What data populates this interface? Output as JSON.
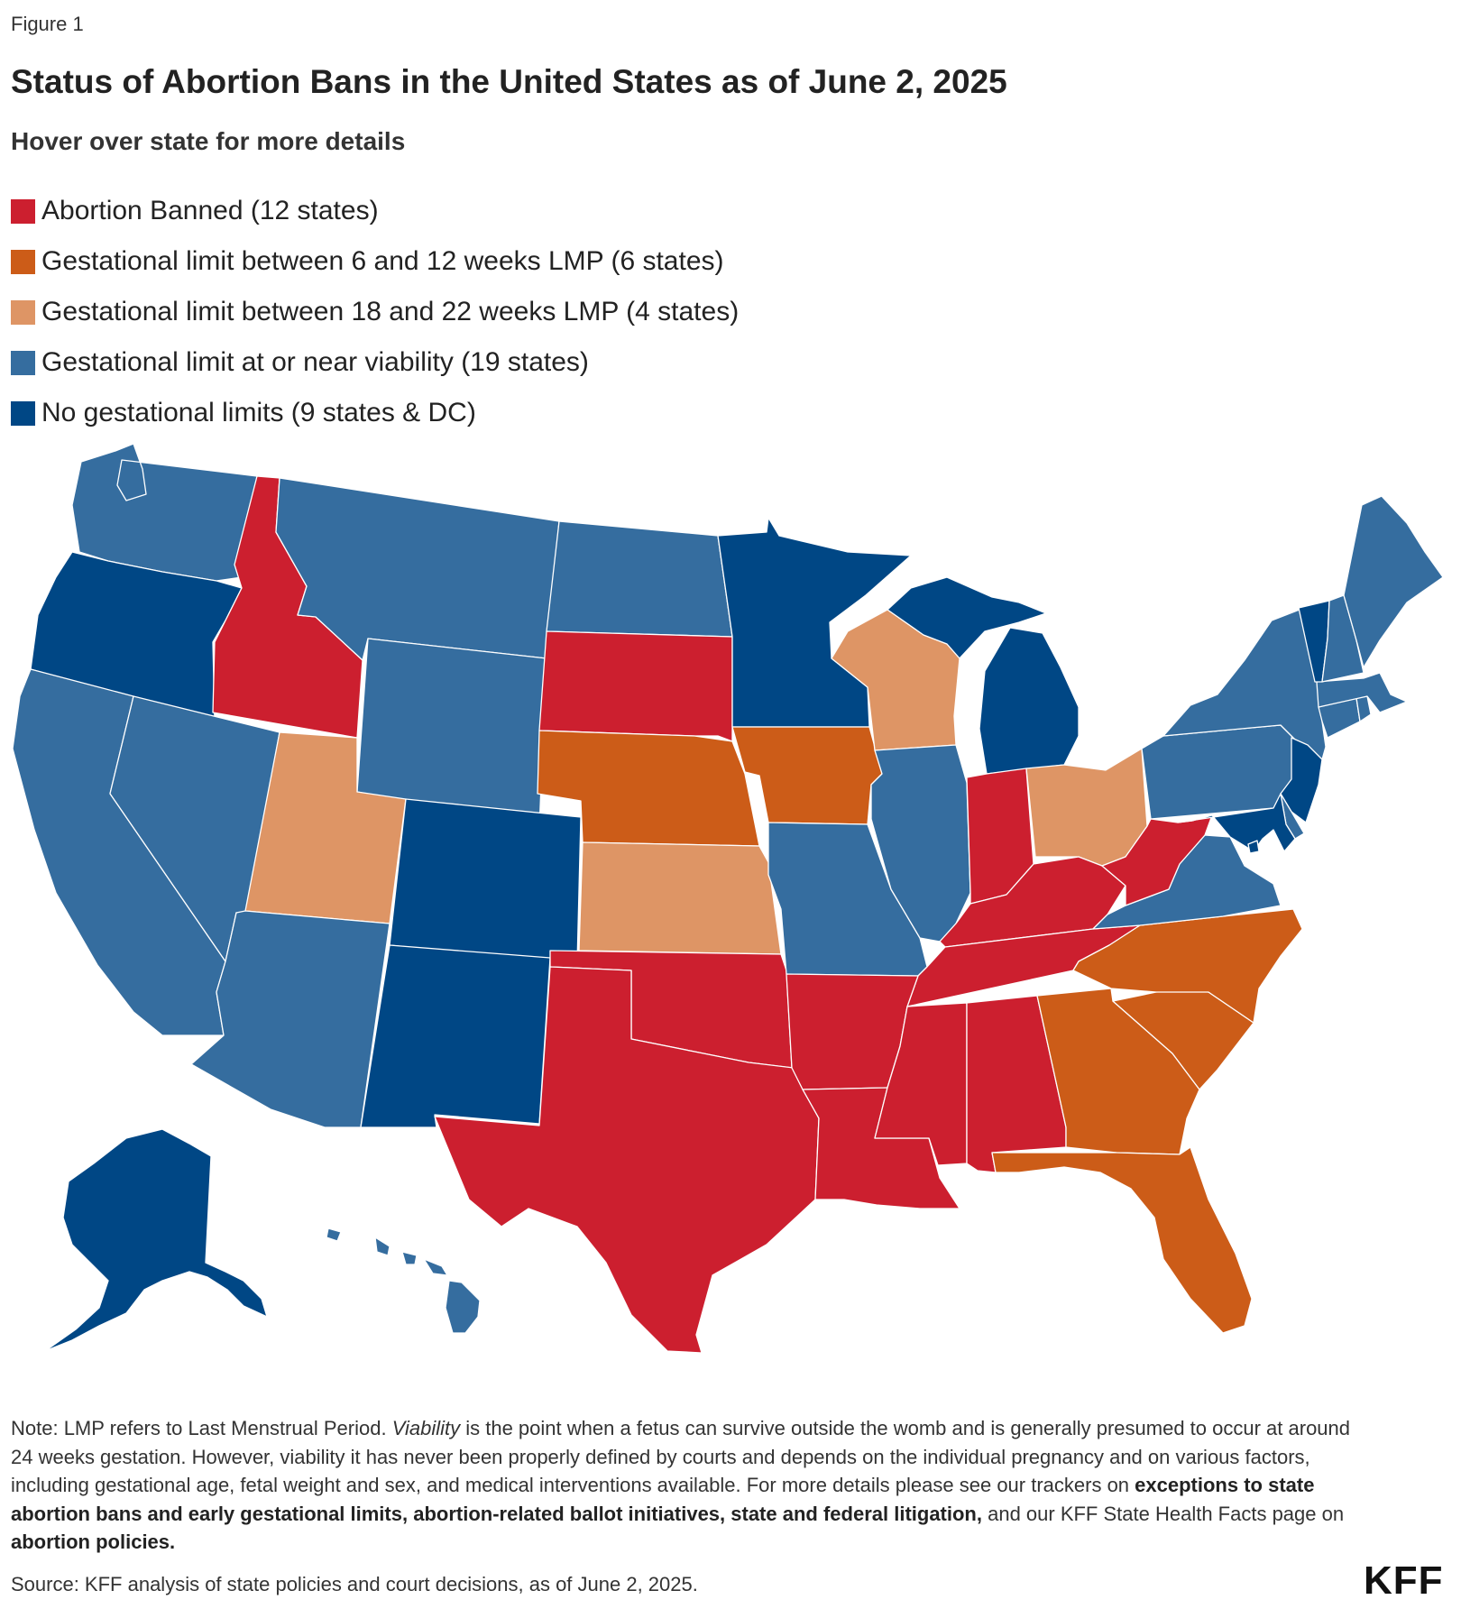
{
  "figure_label": "Figure 1",
  "title": "Status of Abortion Bans in the United States as of June 2, 2025",
  "subtitle": "Hover over state for more details",
  "legend": [
    {
      "label": "Abortion Banned (12 states)",
      "color": "#cc1f2f"
    },
    {
      "label": "Gestational limit between 6 and 12 weeks LMP (6 states)",
      "color": "#cc5c18"
    },
    {
      "label": "Gestational limit between 18 and 22 weeks LMP (4 states)",
      "color": "#de9565"
    },
    {
      "label": "Gestational limit at or near viability (19 states)",
      "color": "#356d9f"
    },
    {
      "label": "No gestational limits (9 states & DC)",
      "color": "#004785"
    }
  ],
  "state_status": {
    "Idaho": 0,
    "South Dakota": 0,
    "Texas": 0,
    "Oklahoma": 0,
    "Arkansas": 0,
    "Louisiana": 0,
    "Mississippi": 0,
    "Alabama": 0,
    "Tennessee": 0,
    "Kentucky": 0,
    "West Virginia": 0,
    "Indiana": 0,
    "Nebraska": 1,
    "Iowa": 1,
    "North Carolina": 1,
    "South Carolina": 1,
    "Georgia": 1,
    "Florida": 1,
    "Utah": 2,
    "Kansas": 2,
    "Wisconsin": 2,
    "Ohio": 2,
    "Washington": 3,
    "California": 3,
    "Nevada": 3,
    "Arizona": 3,
    "Montana": 3,
    "Wyoming": 3,
    "North Dakota": 3,
    "Missouri": 3,
    "Illinois": 3,
    "Pennsylvania": 3,
    "New York": 3,
    "Virginia": 3,
    "Delaware": 3,
    "Connecticut": 3,
    "Rhode Island": 3,
    "Massachusetts": 3,
    "New Hampshire": 3,
    "Maine": 3,
    "Hawaii": 3,
    "Oregon": 4,
    "Colorado": 4,
    "New Mexico": 4,
    "Minnesota": 4,
    "Michigan": 4,
    "New Jersey": 4,
    "Maryland": 4,
    "Vermont": 4,
    "Alaska": 4,
    "District of Columbia": 4
  },
  "note": {
    "p1": "Note: LMP refers to Last Menstrual Period. ",
    "term": "Viability",
    "p2": " is the point when a fetus can survive outside the womb and is generally presumed to occur at around 24 weeks gestation. However, viability it has never been properly defined by courts and depends on the individual pregnancy and on various factors, including gestational age, fetal weight and sex, and medical interventions available. For more details please see our trackers on ",
    "link1": "exceptions to state abortion bans and early gestational limits, abortion-related ballot initiatives, state and federal litigation,",
    "p3": " and our KFF State Health Facts page on ",
    "link2": "abortion policies."
  },
  "source": "Source: KFF analysis of state policies and court decisions, as of June 2, 2025.",
  "logo": "KFF"
}
